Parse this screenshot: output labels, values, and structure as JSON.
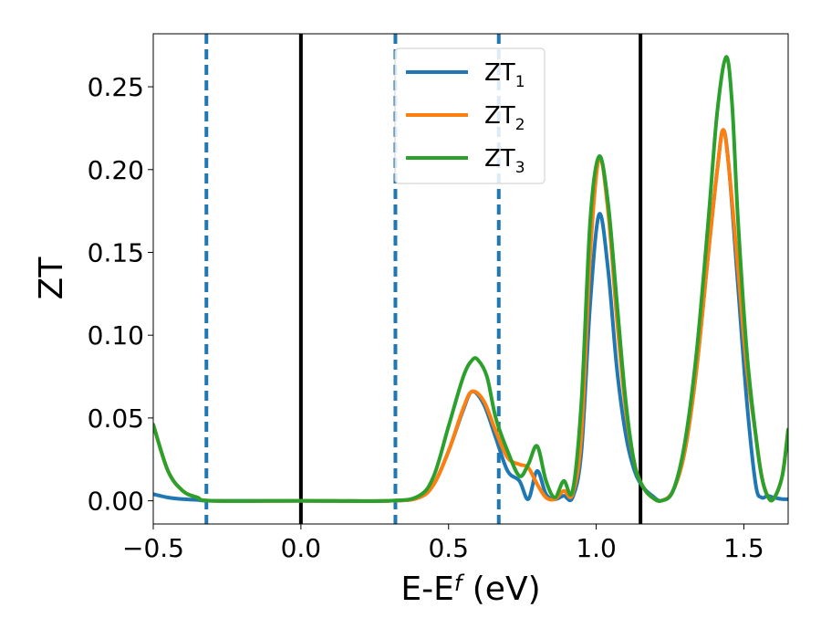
{
  "chart_data": {
    "type": "line",
    "xlabel": "E-E",
    "xlabel_sub": "f",
    "xlabel_unit": " (eV)",
    "ylabel": "ZT",
    "xlim": [
      -0.5,
      1.65
    ],
    "ylim": [
      -0.014,
      0.282
    ],
    "xticks": [
      -0.5,
      0.0,
      0.5,
      1.0,
      1.5
    ],
    "xtick_labels": [
      "−0.5",
      "0.0",
      "0.5",
      "1.0",
      "1.5"
    ],
    "yticks": [
      0.0,
      0.05,
      0.1,
      0.15,
      0.2,
      0.25
    ],
    "ytick_labels": [
      "0.00",
      "0.05",
      "0.10",
      "0.15",
      "0.20",
      "0.25"
    ],
    "grid": false,
    "legend_position": "top-center",
    "colors": {
      "ZT1": "#1f77b4",
      "ZT2": "#ff7f0e",
      "ZT3": "#2ca02c",
      "vline_solid": "#000000",
      "vline_dashed": "#1f77b4"
    },
    "vlines_solid": [
      0.0,
      1.15
    ],
    "vlines_dashed": [
      -0.32,
      0.32,
      0.67
    ],
    "series": [
      {
        "name": "ZT",
        "sub": "1",
        "color": "#1f77b4",
        "x": [
          -0.5,
          -0.45,
          -0.4,
          -0.35,
          -0.3,
          0.0,
          0.3,
          0.4,
          0.45,
          0.5,
          0.55,
          0.58,
          0.62,
          0.66,
          0.7,
          0.74,
          0.77,
          0.8,
          0.83,
          0.86,
          0.89,
          0.92,
          0.95,
          0.98,
          1.01,
          1.04,
          1.07,
          1.1,
          1.13,
          1.16,
          1.19,
          1.22,
          1.26,
          1.3,
          1.34,
          1.38,
          1.41,
          1.43,
          1.45,
          1.48,
          1.51,
          1.54,
          1.56,
          1.58,
          1.6,
          1.63,
          1.65
        ],
        "y": [
          0.004,
          0.002,
          0.001,
          0.0005,
          0.0,
          0.0,
          0.0,
          0.002,
          0.01,
          0.03,
          0.055,
          0.066,
          0.058,
          0.038,
          0.018,
          0.012,
          0.001,
          0.018,
          0.004,
          0.001,
          0.003,
          0.002,
          0.03,
          0.12,
          0.173,
          0.14,
          0.08,
          0.04,
          0.018,
          0.008,
          0.003,
          0.0,
          0.006,
          0.03,
          0.08,
          0.15,
          0.2,
          0.224,
          0.2,
          0.13,
          0.06,
          0.01,
          0.002,
          0.003,
          0.002,
          0.001,
          0.001
        ]
      },
      {
        "name": "ZT",
        "sub": "2",
        "color": "#ff7f0e",
        "x": [
          -0.5,
          -0.45,
          -0.4,
          -0.35,
          -0.3,
          0.0,
          0.3,
          0.4,
          0.45,
          0.5,
          0.55,
          0.58,
          0.62,
          0.66,
          0.7,
          0.74,
          0.77,
          0.8,
          0.83,
          0.86,
          0.89,
          0.92,
          0.95,
          0.98,
          1.01,
          1.04,
          1.07,
          1.1,
          1.13,
          1.16,
          1.19,
          1.22,
          1.26,
          1.3,
          1.34,
          1.38,
          1.41,
          1.43,
          1.45,
          1.48,
          1.51,
          1.54,
          1.56,
          1.58,
          1.6,
          1.63,
          1.65
        ],
        "y": [
          0.046,
          0.018,
          0.006,
          0.002,
          0.0,
          0.0,
          0.0,
          0.002,
          0.01,
          0.03,
          0.056,
          0.066,
          0.06,
          0.042,
          0.026,
          0.022,
          0.02,
          0.01,
          0.002,
          0.001,
          0.006,
          0.004,
          0.04,
          0.15,
          0.207,
          0.175,
          0.11,
          0.055,
          0.022,
          0.008,
          0.002,
          0.0,
          0.006,
          0.03,
          0.08,
          0.15,
          0.2,
          0.224,
          0.2,
          0.14,
          0.08,
          0.04,
          0.015,
          0.003,
          0.001,
          0.015,
          0.043
        ]
      },
      {
        "name": "ZT",
        "sub": "3",
        "color": "#2ca02c",
        "x": [
          -0.5,
          -0.45,
          -0.4,
          -0.35,
          -0.3,
          0.0,
          0.3,
          0.4,
          0.45,
          0.5,
          0.55,
          0.58,
          0.6,
          0.63,
          0.66,
          0.7,
          0.74,
          0.77,
          0.8,
          0.83,
          0.86,
          0.89,
          0.92,
          0.95,
          0.98,
          1.01,
          1.04,
          1.07,
          1.1,
          1.13,
          1.16,
          1.19,
          1.22,
          1.26,
          1.3,
          1.34,
          1.38,
          1.41,
          1.44,
          1.46,
          1.48,
          1.51,
          1.54,
          1.56,
          1.58,
          1.6,
          1.63,
          1.65
        ],
        "y": [
          0.046,
          0.018,
          0.006,
          0.002,
          0.0,
          0.0,
          0.0,
          0.003,
          0.015,
          0.045,
          0.075,
          0.085,
          0.085,
          0.075,
          0.05,
          0.03,
          0.015,
          0.022,
          0.033,
          0.012,
          0.002,
          0.012,
          0.006,
          0.06,
          0.17,
          0.208,
          0.18,
          0.12,
          0.06,
          0.022,
          0.008,
          0.002,
          0.0,
          0.006,
          0.035,
          0.09,
          0.17,
          0.235,
          0.268,
          0.24,
          0.17,
          0.09,
          0.04,
          0.015,
          0.003,
          0.001,
          0.015,
          0.043
        ]
      }
    ]
  }
}
